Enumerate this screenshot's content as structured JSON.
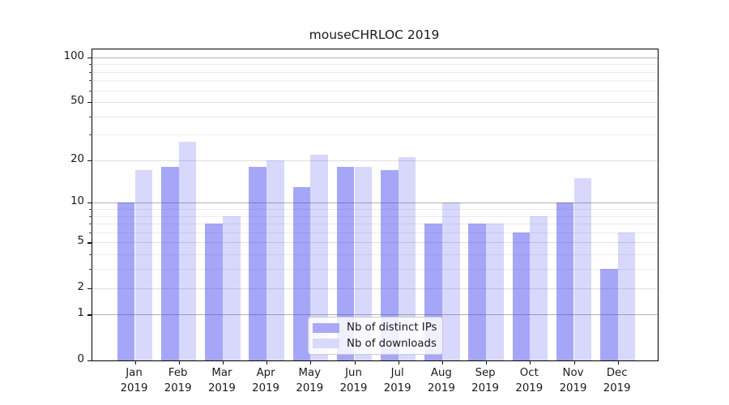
{
  "chart_data": {
    "type": "bar",
    "title": "mouseCHRLOC 2019",
    "categories": [
      "Jan",
      "Feb",
      "Mar",
      "Apr",
      "May",
      "Jun",
      "Jul",
      "Aug",
      "Sep",
      "Oct",
      "Nov",
      "Dec"
    ],
    "category_year": "2019",
    "series": [
      {
        "name": "Nb of distinct IPs",
        "color_hex": "#a9a9f7",
        "fill": "rgba(60,60,240,0.46)",
        "values": [
          10,
          18,
          7,
          18,
          13,
          18,
          17,
          7,
          7,
          6,
          10,
          3
        ]
      },
      {
        "name": "Nb of downloads",
        "color_hex": "#d9d9f9",
        "fill": "rgba(60,60,240,0.20)",
        "values": [
          17,
          27,
          8,
          20,
          22,
          18,
          21,
          10,
          7,
          8,
          15,
          6
        ]
      }
    ],
    "y_axis": {
      "scale": "log1p",
      "ticks": [
        0,
        1,
        2,
        5,
        10,
        20,
        50,
        100
      ],
      "decade_ticks": [
        1,
        10,
        100
      ],
      "minor_ticks": [
        3,
        4,
        6,
        7,
        8,
        9,
        30,
        40,
        60,
        70,
        80,
        90
      ],
      "range": [
        0,
        113
      ]
    },
    "legend": {
      "position": "lower center"
    },
    "colors": {
      "grid_decade": "#b2b2b2",
      "grid_sub": "#dedede",
      "grid_minor": "#ececec",
      "axis": "#000000",
      "background": "#ffffff"
    },
    "grid": "on"
  }
}
